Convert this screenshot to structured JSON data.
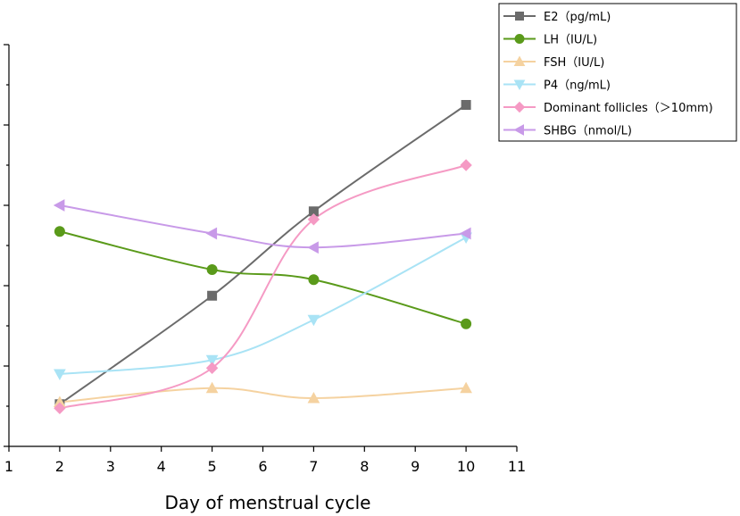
{
  "chart_data": {
    "type": "line",
    "title": "",
    "xlabel": "Day of menstrual cycle",
    "ylabel": "",
    "xlim": [
      1,
      11
    ],
    "ylim": [
      0,
      10
    ],
    "x_ticks": [
      1,
      2,
      3,
      4,
      5,
      6,
      7,
      8,
      9,
      10,
      11
    ],
    "y_ticks": [
      0,
      1,
      2,
      3,
      4,
      5,
      6,
      7,
      8,
      9,
      10
    ],
    "y_tick_labels_visible": false,
    "grid": false,
    "legend_position": "top-right",
    "x": [
      2,
      5,
      7,
      10
    ],
    "series": [
      {
        "name": "E2（pg/mL)",
        "color": "#6b6b6b",
        "marker": "square",
        "values": [
          1.05,
          3.75,
          5.85,
          8.5
        ]
      },
      {
        "name": "LH（IU/L)",
        "color": "#5a9a1a",
        "marker": "circle",
        "values": [
          5.35,
          4.4,
          4.15,
          3.05
        ]
      },
      {
        "name": "FSH（IU/L)",
        "color": "#f5d2a0",
        "marker": "triangle-up",
        "values": [
          1.1,
          1.45,
          1.2,
          1.45
        ]
      },
      {
        "name": "P4（ng/mL)",
        "color": "#a9e3f5",
        "marker": "triangle-down",
        "values": [
          1.8,
          2.15,
          3.15,
          5.2
        ]
      },
      {
        "name": "Dominant follicles（＞10mm)",
        "color": "#f59ac4",
        "marker": "diamond",
        "values": [
          0.95,
          1.95,
          5.65,
          7.0
        ]
      },
      {
        "name": "SHBG（nmol/L)",
        "color": "#c89ae8",
        "marker": "triangle-left",
        "values": [
          6.0,
          5.3,
          4.95,
          5.3
        ]
      }
    ]
  }
}
